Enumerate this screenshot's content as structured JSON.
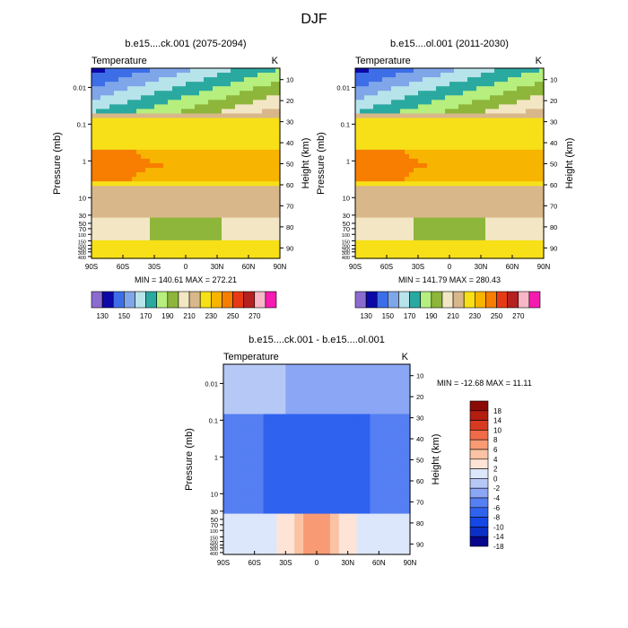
{
  "figure": {
    "title": "DJF"
  },
  "colors": {
    "abs_palette": [
      "#8c6bd1",
      "#0c08a8",
      "#3d6ee8",
      "#7fa6e8",
      "#b7e3ea",
      "#2aa9a0",
      "#b6ef7d",
      "#8db63a",
      "#f3e6c4",
      "#d8b78a",
      "#f7e017",
      "#f7b400",
      "#f77e00",
      "#e63a16",
      "#b52020",
      "#f7b7c7",
      "#f51bb0"
    ],
    "diff_palette": [
      "#07068d",
      "#0b2fc6",
      "#1546e6",
      "#2f62ef",
      "#557ff2",
      "#8aa6f4",
      "#b6c9f6",
      "#dde7fb",
      "#fde4d6",
      "#fbc3a4",
      "#f89a74",
      "#f06b48",
      "#d63a20",
      "#b21e10",
      "#8c0a06"
    ]
  },
  "chart_data": [
    {
      "type": "contour",
      "title": "b.e15....ck.001 (2075-2094)",
      "left_label": "Temperature",
      "right_label": "K",
      "ylabel": "Pressure (mb)",
      "ylabel_right": "Height (km)",
      "x_ticks": [
        "90S",
        "60S",
        "30S",
        "0",
        "30N",
        "60N",
        "90N"
      ],
      "x_values": [
        -90,
        -60,
        -30,
        0,
        30,
        60,
        90
      ],
      "p_ticks": [
        "0.01",
        "0.1",
        "1",
        "10",
        "30",
        "50",
        "70",
        "100",
        "150",
        "200",
        "250",
        "300",
        "400"
      ],
      "p_values": [
        0.01,
        0.1,
        1,
        10,
        30,
        50,
        70,
        100,
        150,
        200,
        250,
        300,
        400
      ],
      "h_ticks": [
        "10",
        "20",
        "30",
        "40",
        "50",
        "60",
        "70",
        "80",
        "90"
      ],
      "min": 140.61,
      "max": 272.21,
      "stats_text": "MIN = 140.61   MAX = 272.21",
      "colorbar_labels": [
        "130",
        "150",
        "170",
        "190",
        "210",
        "230",
        "250",
        "270"
      ]
    },
    {
      "type": "contour",
      "title": "b.e15....ol.001 (2011-2030)",
      "left_label": "Temperature",
      "right_label": "K",
      "ylabel": "Pressure (mb)",
      "ylabel_right": "Height (km)",
      "x_ticks": [
        "90S",
        "60S",
        "30S",
        "0",
        "30N",
        "60N",
        "90N"
      ],
      "x_values": [
        -90,
        -60,
        -30,
        0,
        30,
        60,
        90
      ],
      "p_ticks": [
        "0.01",
        "0.1",
        "1",
        "10",
        "30",
        "50",
        "70",
        "100",
        "150",
        "200",
        "250",
        "300",
        "400"
      ],
      "p_values": [
        0.01,
        0.1,
        1,
        10,
        30,
        50,
        70,
        100,
        150,
        200,
        250,
        300,
        400
      ],
      "h_ticks": [
        "10",
        "20",
        "30",
        "40",
        "50",
        "60",
        "70",
        "80",
        "90"
      ],
      "min": 141.79,
      "max": 280.43,
      "stats_text": "MIN = 141.79   MAX = 280.43",
      "colorbar_labels": [
        "130",
        "150",
        "170",
        "190",
        "210",
        "230",
        "250",
        "270"
      ]
    },
    {
      "type": "contour",
      "title": "b.e15....ck.001 - b.e15....ol.001",
      "left_label": "Temperature",
      "right_label": "K",
      "ylabel": "Pressure (mb)",
      "ylabel_right": "Height (km)",
      "x_ticks": [
        "90S",
        "60S",
        "30S",
        "0",
        "30N",
        "60N",
        "90N"
      ],
      "x_values": [
        -90,
        -60,
        -30,
        0,
        30,
        60,
        90
      ],
      "p_ticks": [
        "0.01",
        "0.1",
        "1",
        "10",
        "30",
        "50",
        "70",
        "100",
        "150",
        "200",
        "250",
        "300",
        "400"
      ],
      "p_values": [
        0.01,
        0.1,
        1,
        10,
        30,
        50,
        70,
        100,
        150,
        200,
        250,
        300,
        400
      ],
      "h_ticks": [
        "10",
        "20",
        "30",
        "40",
        "50",
        "60",
        "70",
        "80",
        "90"
      ],
      "min": -12.68,
      "max": 11.11,
      "stats_text": "MIN = -12.68   MAX =  11.11",
      "colorbar_labels": [
        "18",
        "14",
        "10",
        "8",
        "6",
        "4",
        "2",
        "0",
        "-2",
        "-4",
        "-6",
        "-8",
        "-10",
        "-14",
        "-18"
      ]
    }
  ]
}
